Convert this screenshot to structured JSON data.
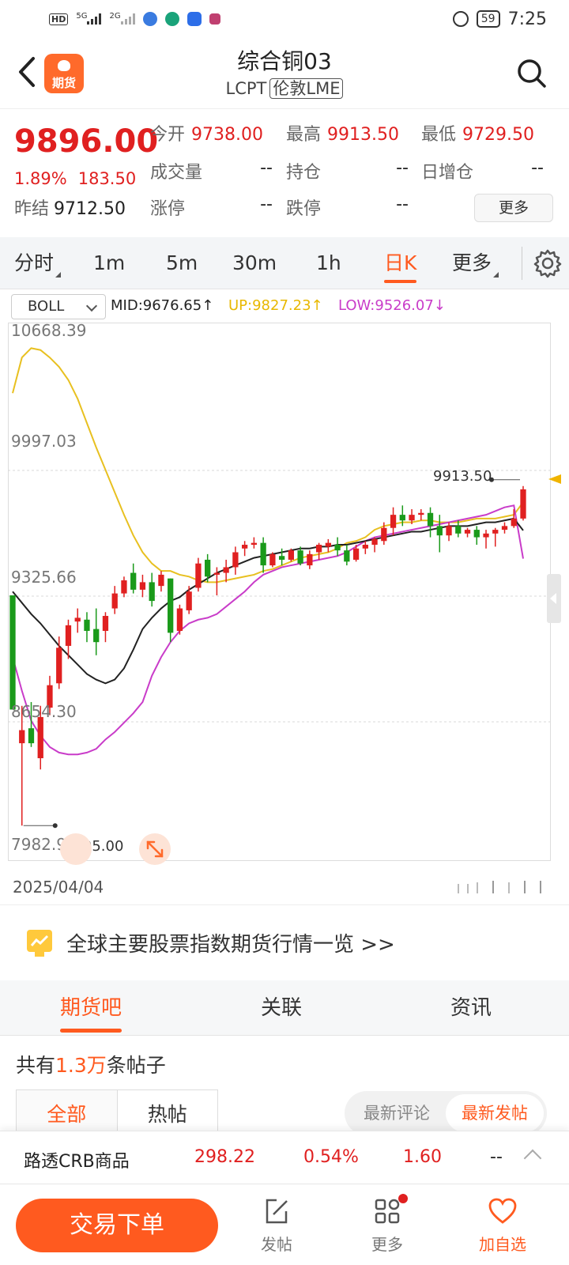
{
  "status_bar": {
    "network": "HD",
    "sig1": "5G",
    "sig2": "2G",
    "battery": "59",
    "time": "7:25"
  },
  "header": {
    "app_badge": "期货",
    "title": "综合铜03",
    "code": "LCPT",
    "exchange": "伦敦LME"
  },
  "quote": {
    "price": "9896.00",
    "change_pct": "1.89%",
    "change_abs": "183.50",
    "prev_settle_label": "昨结",
    "prev_settle": "9712.50",
    "fields": [
      {
        "label": "今开",
        "value": "9738.00"
      },
      {
        "label": "最高",
        "value": "9913.50"
      },
      {
        "label": "最低",
        "value": "9729.50"
      },
      {
        "label": "成交量",
        "value": "--"
      },
      {
        "label": "持仓",
        "value": "--"
      },
      {
        "label": "日增仓",
        "value": "--"
      },
      {
        "label": "涨停",
        "value": "--"
      },
      {
        "label": "跌停",
        "value": "--"
      }
    ],
    "more_label": "更多"
  },
  "period_tabs": [
    "分时",
    "1m",
    "5m",
    "30m",
    "1h",
    "日K",
    "更多"
  ],
  "active_period": "日K",
  "indicator": {
    "selected": "BOLL",
    "mid": "MID:9676.65↑",
    "up": "UP:9827.23↑",
    "low": "LOW:9526.07↓"
  },
  "chart_data": {
    "type": "candlestick",
    "indicator": "BOLL",
    "y_ticks": [
      "10668.39",
      "9997.03",
      "9325.66",
      "8654.30",
      "7982.93"
    ],
    "ylim": [
      7982.93,
      10668.39
    ],
    "x_start_label": "2025/04/04",
    "max_marker": "9913.50",
    "min_marker": "8105.00",
    "colors": {
      "up": "#e02020",
      "down": "#1a9a1a",
      "mid": "#222222",
      "upper": "#e8c020",
      "lower": "#c93cc9"
    },
    "candles": [
      [
        9330,
        9330,
        8720,
        8720
      ],
      [
        8540,
        8740,
        8100,
        8610
      ],
      [
        8620,
        8760,
        8520,
        8540
      ],
      [
        8460,
        8740,
        8400,
        8680
      ],
      [
        8730,
        8900,
        8690,
        8850
      ],
      [
        8860,
        9110,
        8830,
        9050
      ],
      [
        9060,
        9200,
        8990,
        9170
      ],
      [
        9190,
        9260,
        9130,
        9210
      ],
      [
        9200,
        9240,
        9080,
        9140
      ],
      [
        9150,
        9260,
        9010,
        9080
      ],
      [
        9140,
        9240,
        9080,
        9220
      ],
      [
        9260,
        9380,
        9230,
        9340
      ],
      [
        9340,
        9430,
        9320,
        9410
      ],
      [
        9450,
        9500,
        9340,
        9360
      ],
      [
        9360,
        9440,
        9320,
        9400
      ],
      [
        9400,
        9450,
        9270,
        9300
      ],
      [
        9380,
        9460,
        9350,
        9440
      ],
      [
        9420,
        9420,
        9080,
        9130
      ],
      [
        9140,
        9280,
        9120,
        9260
      ],
      [
        9250,
        9380,
        9230,
        9350
      ],
      [
        9370,
        9530,
        9350,
        9500
      ],
      [
        9520,
        9550,
        9400,
        9430
      ],
      [
        9440,
        9480,
        9330,
        9450
      ],
      [
        9450,
        9520,
        9400,
        9480
      ],
      [
        9480,
        9590,
        9440,
        9560
      ],
      [
        9580,
        9620,
        9540,
        9600
      ],
      [
        9600,
        9640,
        9580,
        9610
      ],
      [
        9610,
        9640,
        9450,
        9490
      ],
      [
        9490,
        9560,
        9480,
        9550
      ],
      [
        9540,
        9580,
        9490,
        9520
      ],
      [
        9520,
        9580,
        9510,
        9570
      ],
      [
        9570,
        9590,
        9490,
        9500
      ],
      [
        9490,
        9570,
        9470,
        9550
      ],
      [
        9560,
        9610,
        9520,
        9600
      ],
      [
        9590,
        9630,
        9560,
        9610
      ],
      [
        9600,
        9640,
        9540,
        9570
      ],
      [
        9570,
        9600,
        9490,
        9510
      ],
      [
        9520,
        9600,
        9510,
        9580
      ],
      [
        9580,
        9620,
        9550,
        9600
      ],
      [
        9600,
        9640,
        9560,
        9630
      ],
      [
        9620,
        9720,
        9600,
        9690
      ],
      [
        9690,
        9800,
        9650,
        9760
      ],
      [
        9760,
        9810,
        9700,
        9730
      ],
      [
        9730,
        9790,
        9710,
        9760
      ],
      [
        9760,
        9790,
        9730,
        9770
      ],
      [
        9770,
        9800,
        9640,
        9700
      ],
      [
        9700,
        9760,
        9560,
        9650
      ],
      [
        9650,
        9720,
        9620,
        9700
      ],
      [
        9700,
        9730,
        9640,
        9660
      ],
      [
        9660,
        9690,
        9640,
        9680
      ],
      [
        9680,
        9700,
        9600,
        9640
      ],
      [
        9640,
        9680,
        9580,
        9660
      ],
      [
        9660,
        9690,
        9590,
        9680
      ],
      [
        9680,
        9720,
        9660,
        9700
      ],
      [
        9700,
        9790,
        9690,
        9740
      ],
      [
        9740,
        9913.5,
        9729.5,
        9896
      ]
    ],
    "upper_band": [
      10410,
      10600,
      10650,
      10640,
      10600,
      10550,
      10480,
      10380,
      10250,
      10120,
      10000,
      9880,
      9760,
      9650,
      9560,
      9500,
      9460,
      9460,
      9440,
      9430,
      9410,
      9400,
      9400,
      9410,
      9420,
      9430,
      9440,
      9460,
      9470,
      9490,
      9510,
      9530,
      9540,
      9550,
      9560,
      9580,
      9610,
      9620,
      9640,
      9680,
      9700,
      9710,
      9720,
      9720,
      9730,
      9730,
      9720,
      9720,
      9720,
      9730,
      9740,
      9740,
      9740,
      9750,
      9760,
      9827.23
    ],
    "mid_band": [
      9350,
      9290,
      9230,
      9180,
      9120,
      9060,
      9010,
      8960,
      8910,
      8880,
      8860,
      8880,
      8940,
      9040,
      9150,
      9210,
      9260,
      9300,
      9320,
      9360,
      9390,
      9420,
      9450,
      9470,
      9490,
      9510,
      9530,
      9540,
      9550,
      9560,
      9570,
      9580,
      9580,
      9590,
      9590,
      9600,
      9600,
      9610,
      9620,
      9630,
      9640,
      9650,
      9660,
      9670,
      9670,
      9680,
      9690,
      9700,
      9700,
      9700,
      9710,
      9720,
      9720,
      9730,
      9740,
      9676.65
    ],
    "lower_band": [
      9000,
      8820,
      8660,
      8580,
      8520,
      8490,
      8480,
      8480,
      8490,
      8510,
      8560,
      8600,
      8650,
      8700,
      8760,
      8900,
      9000,
      9080,
      9140,
      9180,
      9200,
      9210,
      9230,
      9270,
      9310,
      9350,
      9400,
      9440,
      9460,
      9480,
      9490,
      9500,
      9510,
      9520,
      9530,
      9540,
      9560,
      9590,
      9620,
      9640,
      9650,
      9660,
      9670,
      9680,
      9690,
      9700,
      9710,
      9720,
      9730,
      9740,
      9750,
      9760,
      9780,
      9800,
      9810,
      9526.07
    ]
  },
  "banner": {
    "text": "全球主要股票指数期货行情一览 >>"
  },
  "community_tabs": [
    "期货吧",
    "关联",
    "资讯"
  ],
  "post_count": {
    "prefix": "共有",
    "count": "1.3万",
    "suffix": "条帖子"
  },
  "post_filter": [
    "全部",
    "热帖"
  ],
  "post_sort": [
    "最新评论",
    "最新发帖"
  ],
  "ticker": {
    "name": "路透CRB商品",
    "price": "298.22",
    "pct": "0.54%",
    "change": "1.60",
    "extra": "--"
  },
  "bottom_nav": {
    "trade": "交易下单",
    "post": "发帖",
    "more": "更多",
    "favorite": "加自选"
  }
}
